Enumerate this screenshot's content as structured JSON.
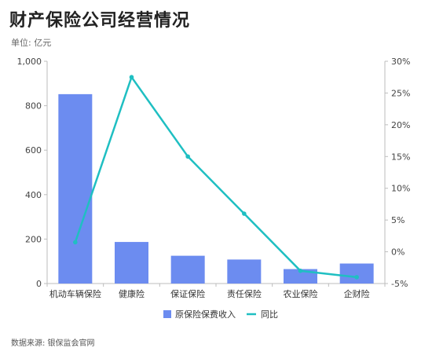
{
  "title": "财产保险公司经营情况",
  "unit_note": "单位: 亿元",
  "source": "数据来源: 银保监会官网",
  "colors": {
    "bar": "#6c8cf0",
    "line": "#1fbfc2",
    "grid": "#e3e3e3",
    "axis": "#bdbdbd"
  },
  "chart_data": {
    "type": "bar",
    "categories": [
      "机动车辆保险",
      "健康险",
      "保证保险",
      "责任保险",
      "农业保险",
      "企财险"
    ],
    "series": [
      {
        "name": "原保险保费收入",
        "type": "bar",
        "axis": "left",
        "values": [
          852,
          187,
          125,
          108,
          65,
          90
        ]
      },
      {
        "name": "同比",
        "type": "line",
        "axis": "right",
        "values": [
          1.5,
          27.5,
          15.0,
          6.0,
          -3.0,
          -4.0
        ]
      }
    ],
    "y_left": {
      "ylim": [
        0,
        1000
      ],
      "ticks": [
        0,
        200,
        400,
        600,
        800,
        1000
      ],
      "tick_labels": [
        "0",
        "200",
        "400",
        "600",
        "800",
        "1,000"
      ]
    },
    "y_right": {
      "ylim": [
        -5,
        30
      ],
      "ticks": [
        -5,
        0,
        5,
        10,
        15,
        20,
        25,
        30
      ],
      "tick_labels": [
        "-5%",
        "0%",
        "5%",
        "10%",
        "15%",
        "20%",
        "25%",
        "30%"
      ]
    },
    "legend": {
      "position": "bottom",
      "entries": [
        "原保险保费收入",
        "同比"
      ]
    },
    "grid": false
  }
}
